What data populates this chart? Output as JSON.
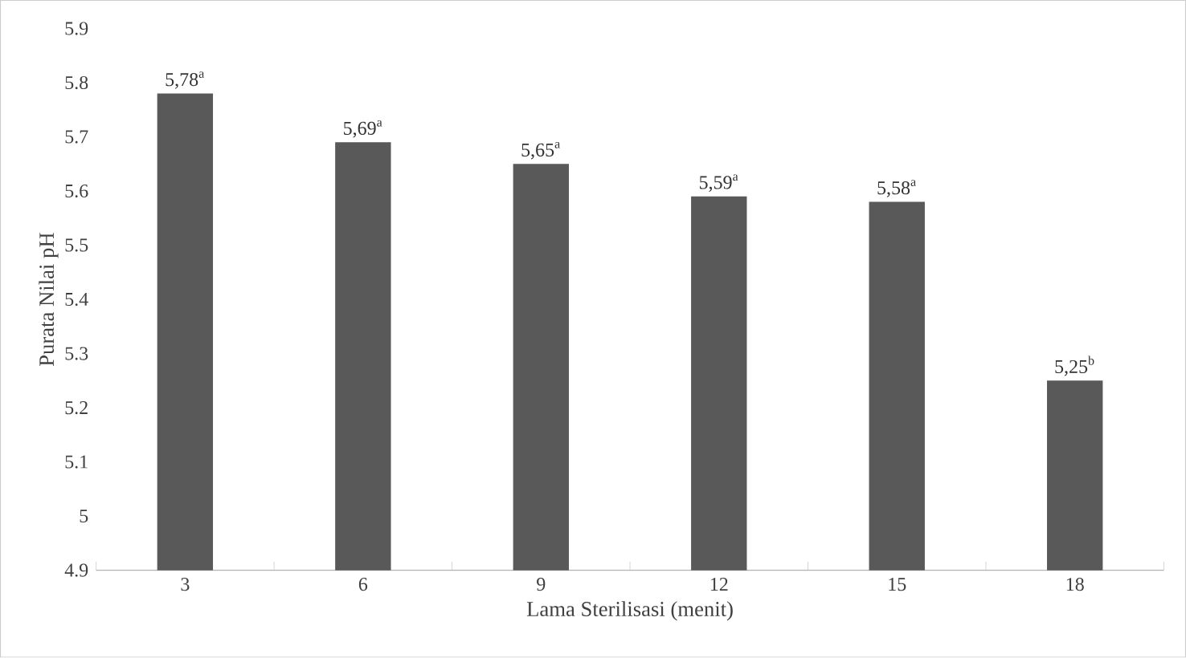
{
  "chart_data": {
    "type": "bar",
    "xlabel": "Lama Sterilisasi (menit)",
    "ylabel": "Purata Nilai pH",
    "categories": [
      "3",
      "6",
      "9",
      "12",
      "15",
      "18"
    ],
    "values": [
      5.78,
      5.69,
      5.65,
      5.59,
      5.58,
      5.25
    ],
    "value_labels": [
      "5,78$^{a}$",
      "5,69$^{a}$",
      "5,65$^{a}$",
      "5,59$^{a}$",
      "5,58$^{a}$",
      "5,25$^{b}$"
    ],
    "color": "#595959",
    "ylim": [
      4.9,
      5.9
    ],
    "yticks": [
      4.9,
      5,
      5.1,
      5.2,
      5.3,
      5.4,
      5.5,
      5.6,
      5.7,
      5.8,
      5.9
    ]
  }
}
